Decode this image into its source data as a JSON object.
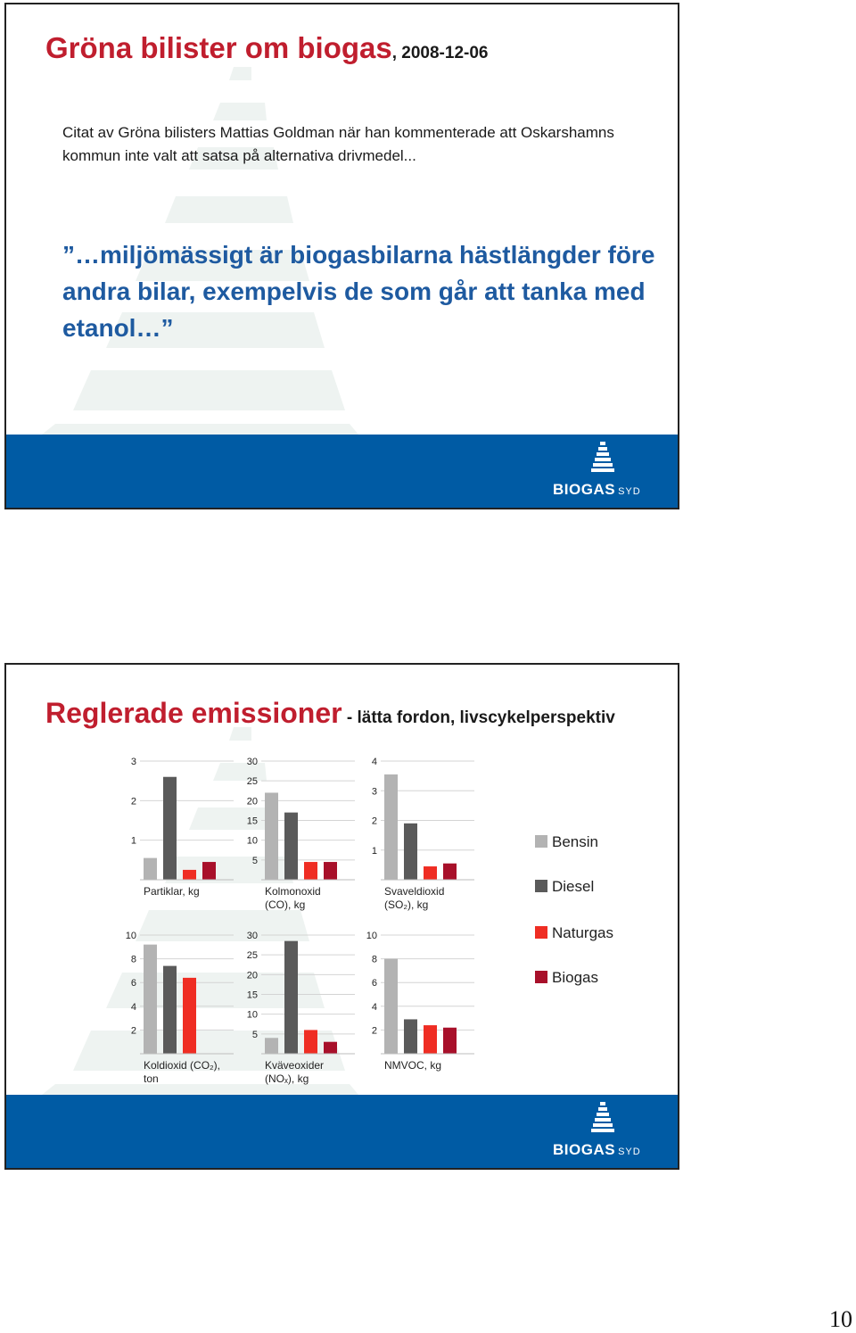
{
  "slide1": {
    "title_main": "Gröna bilister om biogas",
    "title_sub": ", 2008-12-06",
    "intro": "Citat av Gröna bilisters Mattias Goldman när han kommenterade att Oskarshamns kommun inte valt att satsa på alternativa drivmedel...",
    "quote": "”…miljömässigt är biogasbilarna hästlängder före andra bilar, exempelvis de som går att tanka med etanol…”",
    "logo_text": "BIOGAS",
    "logo_sub": "SYD"
  },
  "slide2": {
    "title_main": "Reglerade emissioner",
    "title_sub": " - lätta fordon, livscykelperspektiv",
    "logo_text": "BIOGAS",
    "logo_sub": "SYD"
  },
  "chart_data": [
    {
      "type": "bar",
      "title": "Partiklar, kg",
      "categories": [
        "Bensin",
        "Diesel",
        "Naturgas",
        "Biogas"
      ],
      "values": [
        0.55,
        2.6,
        0.25,
        0.45
      ],
      "ylim": [
        0,
        3
      ],
      "yticks": [
        1,
        2,
        3
      ]
    },
    {
      "type": "bar",
      "title": "Kolmonoxid (CO), kg",
      "categories": [
        "Bensin",
        "Diesel",
        "Naturgas",
        "Biogas"
      ],
      "values": [
        22,
        17,
        4.5,
        4.5
      ],
      "ylim": [
        0,
        30
      ],
      "yticks": [
        5,
        10,
        15,
        20,
        25,
        30
      ]
    },
    {
      "type": "bar",
      "title": "Svaveldioxid (SO₂), kg",
      "categories": [
        "Bensin",
        "Diesel",
        "Naturgas",
        "Biogas"
      ],
      "values": [
        3.55,
        1.9,
        0.45,
        0.55
      ],
      "ylim": [
        0,
        4
      ],
      "yticks": [
        1,
        2,
        3,
        4
      ]
    },
    {
      "type": "bar",
      "title": "Koldioxid (CO₂), ton",
      "categories": [
        "Bensin",
        "Diesel",
        "Naturgas",
        "Biogas"
      ],
      "values": [
        9.2,
        7.4,
        6.4,
        0
      ],
      "ylim": [
        0,
        10
      ],
      "yticks": [
        2,
        4,
        6,
        8,
        10
      ]
    },
    {
      "type": "bar",
      "title": "Kväveoxider (NOₓ), kg",
      "categories": [
        "Bensin",
        "Diesel",
        "Naturgas",
        "Biogas"
      ],
      "values": [
        4,
        28.5,
        6,
        3
      ],
      "ylim": [
        0,
        30
      ],
      "yticks": [
        5,
        10,
        15,
        20,
        25,
        30
      ]
    },
    {
      "type": "bar",
      "title": "NMVOC, kg",
      "categories": [
        "Bensin",
        "Diesel",
        "Naturgas",
        "Biogas"
      ],
      "values": [
        8,
        2.9,
        2.4,
        2.2
      ],
      "ylim": [
        0,
        10
      ],
      "yticks": [
        2,
        4,
        6,
        8,
        10
      ]
    }
  ],
  "legend": [
    {
      "label": "Bensin",
      "color": "#b3b3b3"
    },
    {
      "label": "Diesel",
      "color": "#5a5a5a"
    },
    {
      "label": "Naturgas",
      "color": "#ef2d23"
    },
    {
      "label": "Biogas",
      "color": "#a8102a"
    }
  ],
  "page_number": "10"
}
